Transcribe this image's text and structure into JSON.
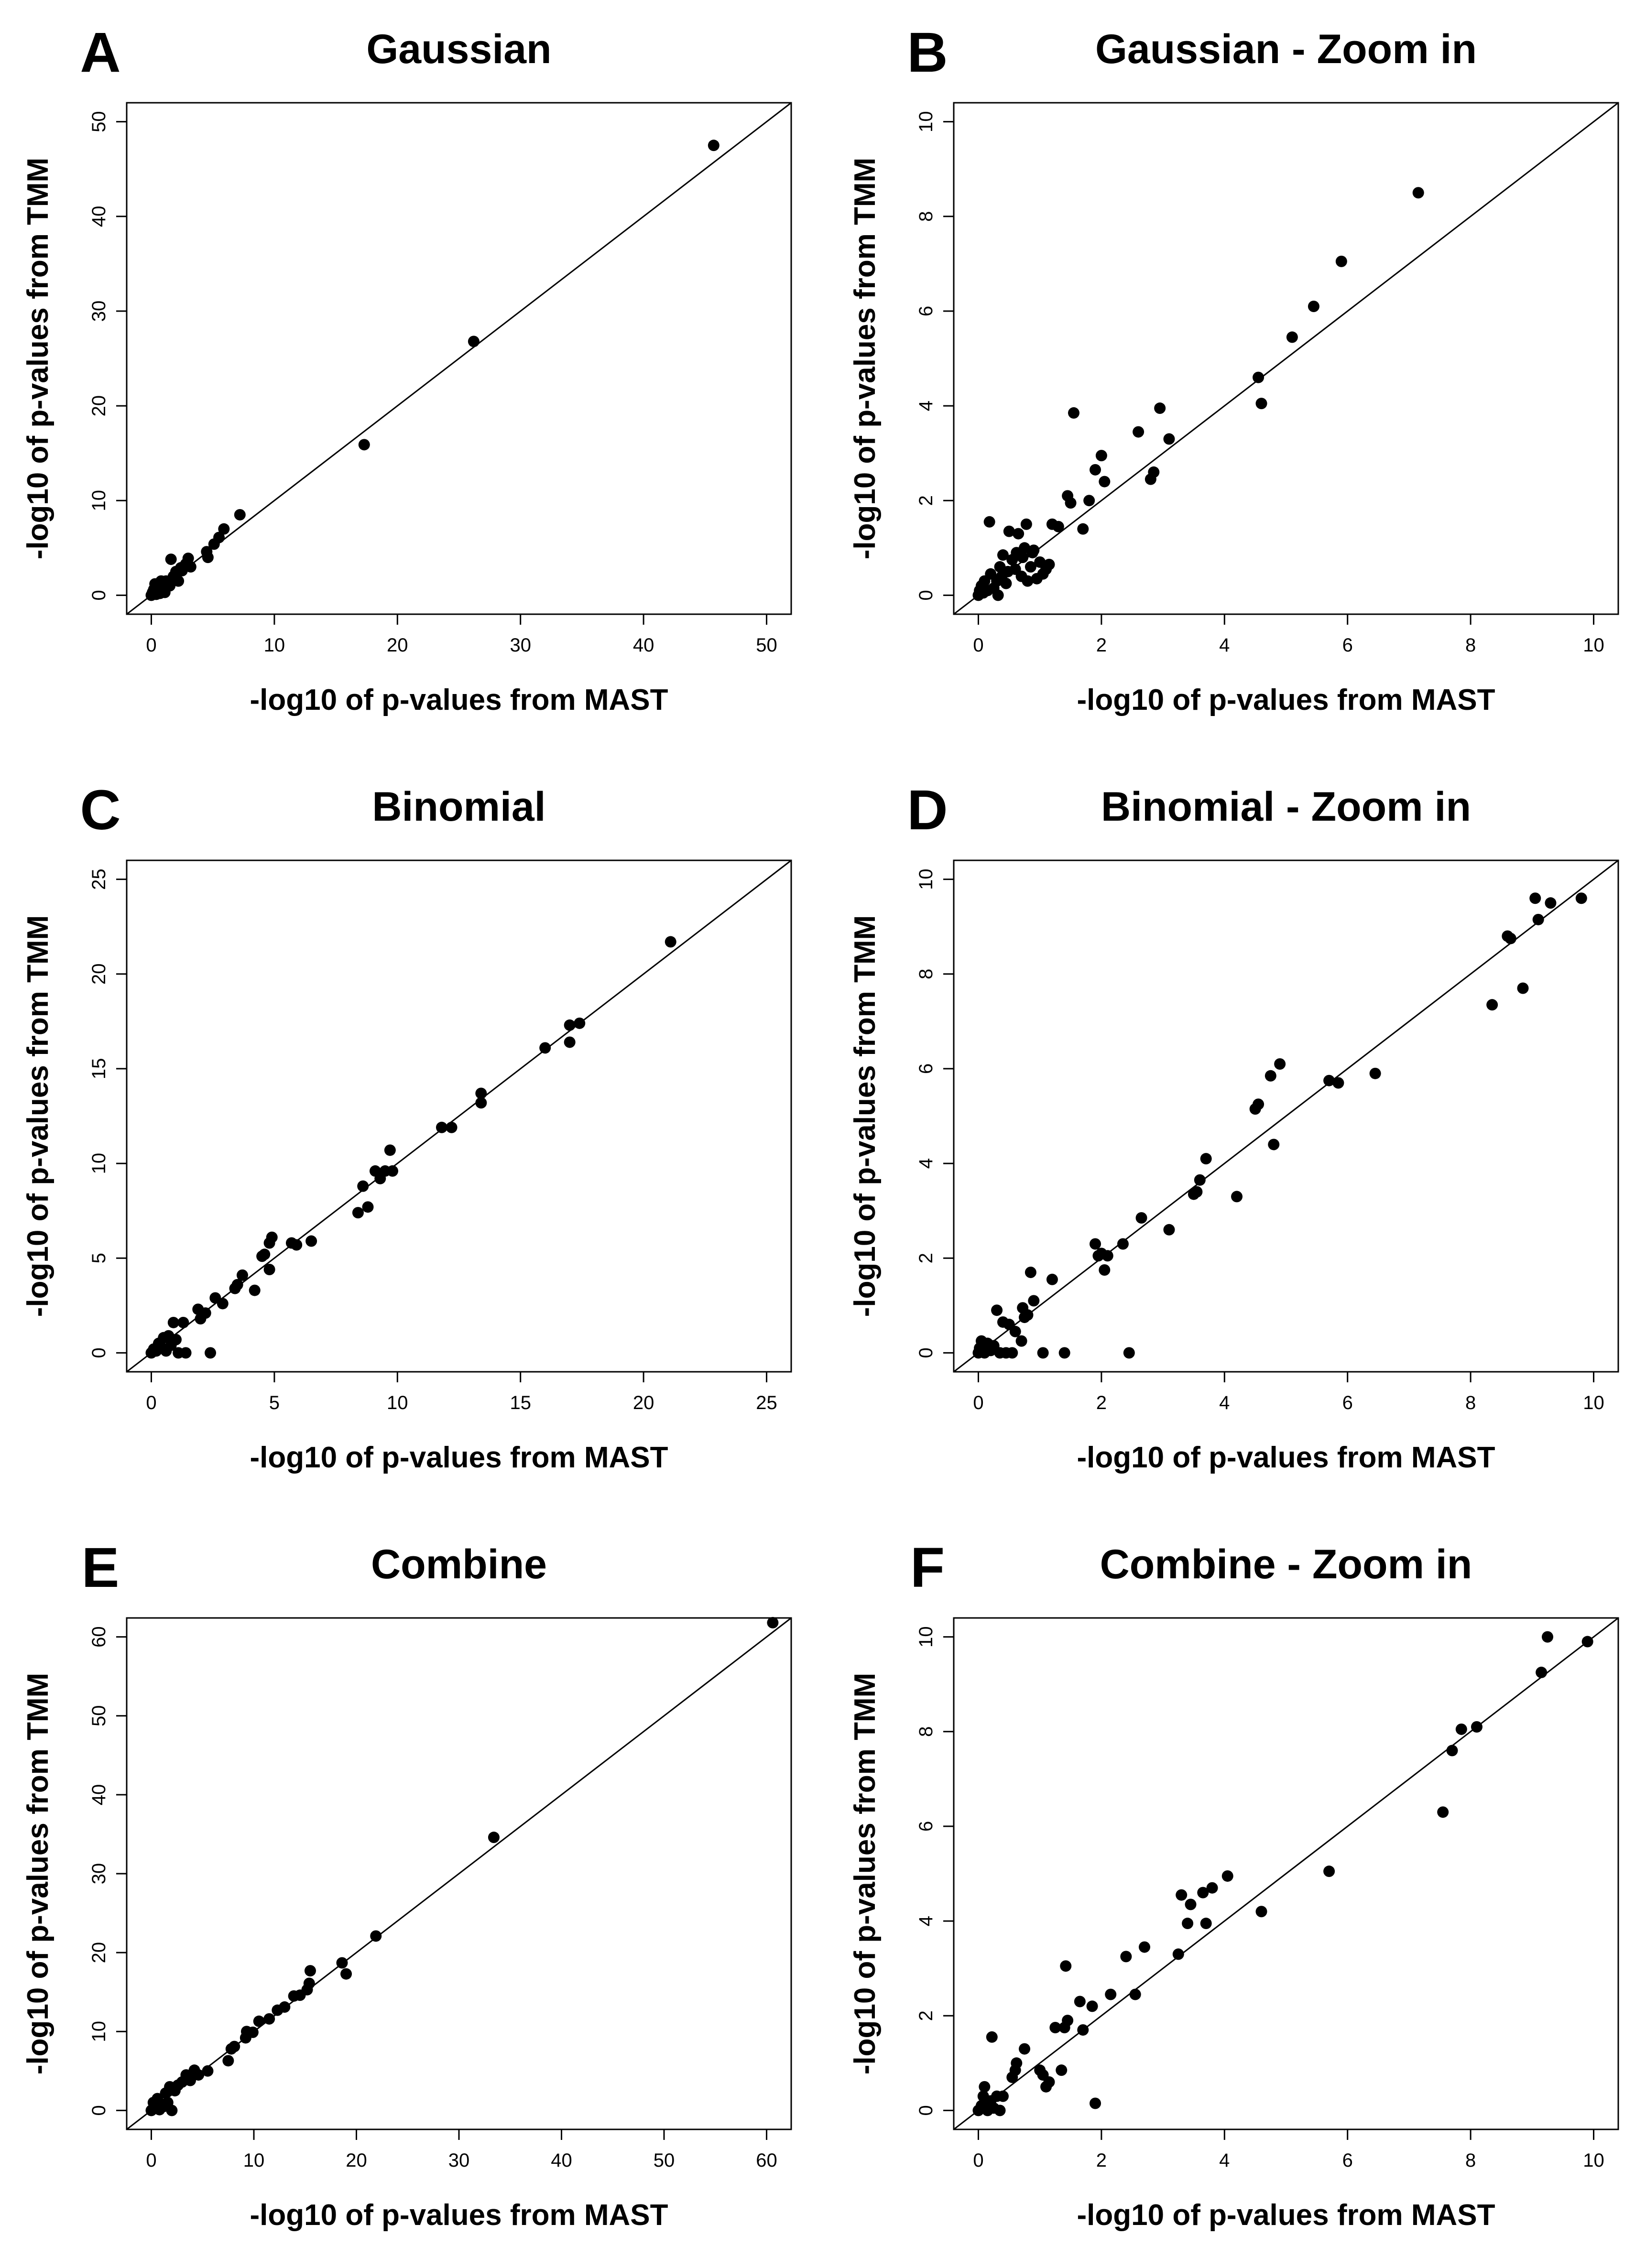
{
  "chart_data": [
    {
      "panel": "A",
      "title": "Gaussian",
      "type": "scatter",
      "xlabel": "-log10 of p-values from MAST",
      "ylabel": "-log10 of p-values from TMM",
      "xlim": [
        0,
        50
      ],
      "ylim": [
        0,
        50
      ],
      "xticks": [
        0,
        10,
        20,
        30,
        40,
        50
      ],
      "yticks": [
        0,
        10,
        20,
        30,
        40,
        50
      ],
      "reference_line": "y = x",
      "grid": false,
      "points": [
        [
          0,
          0
        ],
        [
          0.1,
          0.3
        ],
        [
          0.2,
          0.6
        ],
        [
          0.3,
          1.2
        ],
        [
          0.4,
          0.1
        ],
        [
          0.5,
          0.4
        ],
        [
          0.6,
          0.9
        ],
        [
          0.7,
          0.2
        ],
        [
          0.8,
          1.5
        ],
        [
          0.9,
          0.5
        ],
        [
          1.0,
          0.8
        ],
        [
          1.1,
          0.3
        ],
        [
          1.2,
          1.5
        ],
        [
          1.3,
          1.4
        ],
        [
          1.5,
          1.0
        ],
        [
          1.6,
          3.8
        ],
        [
          1.8,
          2.0
        ],
        [
          2.0,
          2.5
        ],
        [
          2.2,
          1.5
        ],
        [
          2.4,
          2.9
        ],
        [
          2.5,
          2.6
        ],
        [
          2.8,
          3.3
        ],
        [
          3.0,
          3.9
        ],
        [
          3.2,
          3.0
        ],
        [
          4.5,
          4.6
        ],
        [
          4.6,
          4.0
        ],
        [
          5.1,
          5.4
        ],
        [
          5.5,
          6.1
        ],
        [
          5.9,
          7.0
        ],
        [
          7.2,
          8.5
        ],
        [
          17.3,
          15.9
        ],
        [
          26.2,
          26.8
        ],
        [
          45.7,
          47.5
        ]
      ]
    },
    {
      "panel": "B",
      "title": "Gaussian - Zoom in",
      "type": "scatter",
      "xlabel": "-log10 of p-values from MAST",
      "ylabel": "-log10 of p-values from TMM",
      "xlim": [
        0,
        10
      ],
      "ylim": [
        0,
        10
      ],
      "xticks": [
        0,
        2,
        4,
        6,
        8,
        10
      ],
      "yticks": [
        0,
        2,
        4,
        6,
        8,
        10
      ],
      "reference_line": "y = x",
      "grid": false,
      "points": [
        [
          0,
          0
        ],
        [
          0.02,
          0.1
        ],
        [
          0.05,
          0.2
        ],
        [
          0.08,
          0.05
        ],
        [
          0.1,
          0.3
        ],
        [
          0.15,
          0.1
        ],
        [
          0.18,
          1.55
        ],
        [
          0.2,
          0.45
        ],
        [
          0.25,
          0.15
        ],
        [
          0.3,
          0.3
        ],
        [
          0.32,
          0.0
        ],
        [
          0.35,
          0.6
        ],
        [
          0.38,
          0.4
        ],
        [
          0.4,
          0.85
        ],
        [
          0.45,
          0.25
        ],
        [
          0.48,
          0.5
        ],
        [
          0.5,
          1.35
        ],
        [
          0.55,
          0.75
        ],
        [
          0.6,
          0.55
        ],
        [
          0.62,
          0.9
        ],
        [
          0.65,
          1.3
        ],
        [
          0.7,
          0.4
        ],
        [
          0.72,
          0.8
        ],
        [
          0.75,
          1.0
        ],
        [
          0.78,
          1.5
        ],
        [
          0.8,
          0.3
        ],
        [
          0.85,
          0.6
        ],
        [
          0.88,
          0.9
        ],
        [
          0.9,
          0.95
        ],
        [
          0.95,
          0.35
        ],
        [
          1.0,
          0.7
        ],
        [
          1.05,
          0.45
        ],
        [
          1.1,
          0.55
        ],
        [
          1.15,
          0.65
        ],
        [
          1.2,
          1.5
        ],
        [
          1.3,
          1.45
        ],
        [
          1.45,
          2.1
        ],
        [
          1.5,
          1.95
        ],
        [
          1.55,
          3.85
        ],
        [
          1.7,
          1.4
        ],
        [
          1.8,
          2.0
        ],
        [
          1.9,
          2.65
        ],
        [
          2.0,
          2.95
        ],
        [
          2.05,
          2.4
        ],
        [
          2.6,
          3.45
        ],
        [
          2.8,
          2.45
        ],
        [
          2.85,
          2.6
        ],
        [
          2.95,
          3.95
        ],
        [
          3.1,
          3.3
        ],
        [
          4.55,
          4.6
        ],
        [
          4.6,
          4.05
        ],
        [
          5.1,
          5.45
        ],
        [
          5.45,
          6.1
        ],
        [
          5.9,
          7.05
        ],
        [
          7.15,
          8.5
        ]
      ]
    },
    {
      "panel": "C",
      "title": "Binomial",
      "type": "scatter",
      "xlabel": "-log10 of p-values from MAST",
      "ylabel": "-log10 of p-values from TMM",
      "xlim": [
        0,
        25
      ],
      "ylim": [
        0,
        25
      ],
      "xticks": [
        0,
        5,
        10,
        15,
        20,
        25
      ],
      "yticks": [
        0,
        5,
        10,
        15,
        20,
        25
      ],
      "reference_line": "y = x",
      "grid": false,
      "points": [
        [
          0,
          0
        ],
        [
          0.1,
          0.2
        ],
        [
          0.2,
          0.1
        ],
        [
          0.3,
          0.5
        ],
        [
          0.4,
          0.3
        ],
        [
          0.5,
          0.8
        ],
        [
          0.6,
          0.1
        ],
        [
          0.7,
          0.9
        ],
        [
          0.8,
          0.4
        ],
        [
          0.9,
          1.6
        ],
        [
          1.0,
          0.7
        ],
        [
          1.1,
          0.0
        ],
        [
          1.3,
          1.6
        ],
        [
          1.4,
          0.0
        ],
        [
          1.9,
          2.3
        ],
        [
          2.0,
          1.8
        ],
        [
          2.2,
          2.1
        ],
        [
          2.4,
          0.0
        ],
        [
          2.6,
          2.9
        ],
        [
          2.9,
          2.6
        ],
        [
          3.4,
          3.4
        ],
        [
          3.5,
          3.6
        ],
        [
          3.7,
          4.1
        ],
        [
          4.2,
          3.3
        ],
        [
          4.5,
          5.1
        ],
        [
          4.6,
          5.2
        ],
        [
          4.8,
          5.8
        ],
        [
          4.9,
          6.1
        ],
        [
          4.8,
          4.4
        ],
        [
          5.7,
          5.8
        ],
        [
          5.9,
          5.7
        ],
        [
          6.5,
          5.9
        ],
        [
          8.4,
          7.4
        ],
        [
          8.6,
          8.8
        ],
        [
          8.8,
          7.7
        ],
        [
          9.1,
          9.6
        ],
        [
          9.3,
          9.2
        ],
        [
          9.5,
          9.6
        ],
        [
          9.7,
          10.7
        ],
        [
          9.8,
          9.6
        ],
        [
          11.8,
          11.9
        ],
        [
          12.2,
          11.9
        ],
        [
          13.4,
          13.2
        ],
        [
          13.4,
          13.7
        ],
        [
          16.0,
          16.1
        ],
        [
          17.0,
          16.4
        ],
        [
          17.0,
          17.3
        ],
        [
          17.4,
          17.4
        ],
        [
          21.1,
          21.7
        ]
      ]
    },
    {
      "panel": "D",
      "title": "Binomial - Zoom in",
      "type": "scatter",
      "xlabel": "-log10 of p-values from MAST",
      "ylabel": "-log10 of p-values from TMM",
      "xlim": [
        0,
        10
      ],
      "ylim": [
        0,
        10
      ],
      "xticks": [
        0,
        2,
        4,
        6,
        8,
        10
      ],
      "yticks": [
        0,
        2,
        4,
        6,
        8,
        10
      ],
      "reference_line": "y = x",
      "grid": false,
      "points": [
        [
          0,
          0
        ],
        [
          0.02,
          0.1
        ],
        [
          0.05,
          0.25
        ],
        [
          0.1,
          0.0
        ],
        [
          0.15,
          0.2
        ],
        [
          0.2,
          0.05
        ],
        [
          0.25,
          0.15
        ],
        [
          0.3,
          0.9
        ],
        [
          0.35,
          0.0
        ],
        [
          0.4,
          0.65
        ],
        [
          0.45,
          0.0
        ],
        [
          0.5,
          0.6
        ],
        [
          0.55,
          0.0
        ],
        [
          0.6,
          0.45
        ],
        [
          0.7,
          0.25
        ],
        [
          0.72,
          0.95
        ],
        [
          0.75,
          0.75
        ],
        [
          0.8,
          0.8
        ],
        [
          0.85,
          1.7
        ],
        [
          0.9,
          1.1
        ],
        [
          1.05,
          0.0
        ],
        [
          1.2,
          1.55
        ],
        [
          1.4,
          0.0
        ],
        [
          1.9,
          2.3
        ],
        [
          1.95,
          2.05
        ],
        [
          2.0,
          2.1
        ],
        [
          2.05,
          1.75
        ],
        [
          2.1,
          2.05
        ],
        [
          2.35,
          2.3
        ],
        [
          2.45,
          0.0
        ],
        [
          2.65,
          2.85
        ],
        [
          3.1,
          2.6
        ],
        [
          3.5,
          3.35
        ],
        [
          3.55,
          3.4
        ],
        [
          3.6,
          3.65
        ],
        [
          3.7,
          4.1
        ],
        [
          4.2,
          3.3
        ],
        [
          4.5,
          5.15
        ],
        [
          4.55,
          5.25
        ],
        [
          4.75,
          5.85
        ],
        [
          4.8,
          4.4
        ],
        [
          4.9,
          6.1
        ],
        [
          5.7,
          5.75
        ],
        [
          5.85,
          5.7
        ],
        [
          6.45,
          5.9
        ],
        [
          8.35,
          7.35
        ],
        [
          8.6,
          8.8
        ],
        [
          8.65,
          8.75
        ],
        [
          8.85,
          7.7
        ],
        [
          9.05,
          9.6
        ],
        [
          9.1,
          9.15
        ],
        [
          9.3,
          9.5
        ],
        [
          9.8,
          9.6
        ]
      ]
    },
    {
      "panel": "E",
      "title": "Combine",
      "type": "scatter",
      "xlabel": "-log10 of p-values from MAST",
      "ylabel": "-log10 of p-values from TMM",
      "xlim": [
        0,
        60
      ],
      "ylim": [
        0,
        60
      ],
      "xticks": [
        0,
        10,
        20,
        30,
        40,
        50,
        60
      ],
      "yticks": [
        0,
        10,
        20,
        30,
        40,
        50,
        60
      ],
      "reference_line": "y = x",
      "grid": false,
      "points": [
        [
          0,
          0
        ],
        [
          0.2,
          1.0
        ],
        [
          0.4,
          0.3
        ],
        [
          0.6,
          1.5
        ],
        [
          0.8,
          0.1
        ],
        [
          1.0,
          0.8
        ],
        [
          1.2,
          0.5
        ],
        [
          1.4,
          2.2
        ],
        [
          1.6,
          1.0
        ],
        [
          1.8,
          3.0
        ],
        [
          2.0,
          0.0
        ],
        [
          2.3,
          2.5
        ],
        [
          2.6,
          3.2
        ],
        [
          3.0,
          3.6
        ],
        [
          3.4,
          4.5
        ],
        [
          3.8,
          3.8
        ],
        [
          4.2,
          5.1
        ],
        [
          4.6,
          4.5
        ],
        [
          5.5,
          5.0
        ],
        [
          7.5,
          6.3
        ],
        [
          7.8,
          7.8
        ],
        [
          8.1,
          8.1
        ],
        [
          9.2,
          9.2
        ],
        [
          9.3,
          10.0
        ],
        [
          9.9,
          9.9
        ],
        [
          10.5,
          11.3
        ],
        [
          11.5,
          11.6
        ],
        [
          12.3,
          12.7
        ],
        [
          13.0,
          13.1
        ],
        [
          13.9,
          14.5
        ],
        [
          14.5,
          14.6
        ],
        [
          15.2,
          15.3
        ],
        [
          15.4,
          16.1
        ],
        [
          15.5,
          17.7
        ],
        [
          18.6,
          18.7
        ],
        [
          19.0,
          17.3
        ],
        [
          21.9,
          22.1
        ],
        [
          33.4,
          34.6
        ],
        [
          60.6,
          61.8
        ]
      ]
    },
    {
      "panel": "F",
      "title": "Combine - Zoom in",
      "type": "scatter",
      "xlabel": "-log10 of p-values from MAST",
      "ylabel": "-log10 of p-values from TMM",
      "xlim": [
        0,
        10
      ],
      "ylim": [
        0,
        10
      ],
      "xticks": [
        0,
        2,
        4,
        6,
        8,
        10
      ],
      "yticks": [
        0,
        2,
        4,
        6,
        8,
        10
      ],
      "reference_line": "y = x",
      "grid": false,
      "points": [
        [
          0,
          0
        ],
        [
          0.05,
          0.1
        ],
        [
          0.08,
          0.3
        ],
        [
          0.1,
          0.5
        ],
        [
          0.15,
          0.0
        ],
        [
          0.2,
          0.2
        ],
        [
          0.22,
          1.55
        ],
        [
          0.25,
          0.05
        ],
        [
          0.3,
          0.3
        ],
        [
          0.35,
          0.0
        ],
        [
          0.4,
          0.3
        ],
        [
          0.55,
          0.7
        ],
        [
          0.6,
          0.85
        ],
        [
          0.62,
          1.0
        ],
        [
          0.75,
          1.3
        ],
        [
          1.0,
          0.85
        ],
        [
          1.05,
          0.75
        ],
        [
          1.1,
          0.5
        ],
        [
          1.15,
          0.6
        ],
        [
          1.25,
          1.75
        ],
        [
          1.35,
          0.85
        ],
        [
          1.4,
          1.75
        ],
        [
          1.42,
          3.05
        ],
        [
          1.45,
          1.9
        ],
        [
          1.65,
          2.3
        ],
        [
          1.7,
          1.7
        ],
        [
          1.85,
          2.2
        ],
        [
          1.9,
          0.15
        ],
        [
          2.15,
          2.45
        ],
        [
          2.4,
          3.25
        ],
        [
          2.55,
          2.45
        ],
        [
          2.7,
          3.45
        ],
        [
          3.25,
          3.3
        ],
        [
          3.3,
          4.55
        ],
        [
          3.4,
          3.95
        ],
        [
          3.45,
          4.35
        ],
        [
          3.65,
          4.6
        ],
        [
          3.7,
          3.95
        ],
        [
          3.8,
          4.7
        ],
        [
          4.05,
          4.95
        ],
        [
          4.6,
          4.2
        ],
        [
          5.7,
          5.05
        ],
        [
          7.55,
          6.3
        ],
        [
          7.7,
          7.6
        ],
        [
          7.85,
          8.05
        ],
        [
          8.1,
          8.1
        ],
        [
          9.15,
          9.25
        ],
        [
          9.25,
          10.0
        ],
        [
          9.9,
          9.9
        ]
      ]
    }
  ]
}
